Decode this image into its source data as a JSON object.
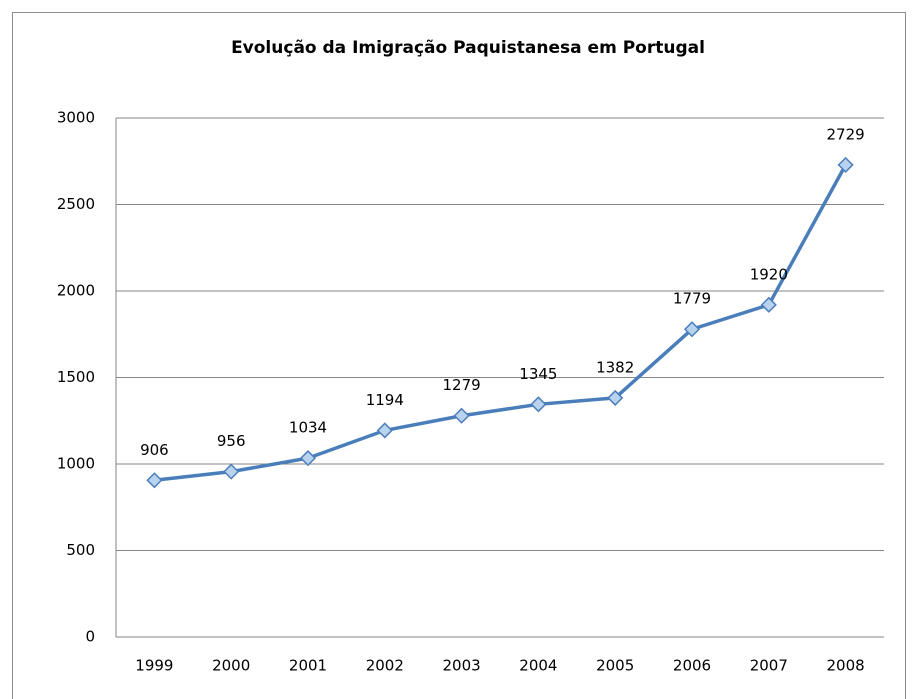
{
  "chart_data": {
    "type": "line",
    "title": "Evolução da Imigração Paquistanesa em Portugal",
    "categories": [
      "1999",
      "2000",
      "2001",
      "2002",
      "2003",
      "2004",
      "2005",
      "2006",
      "2007",
      "2008"
    ],
    "values": [
      906,
      956,
      1034,
      1194,
      1279,
      1345,
      1382,
      1779,
      1920,
      2729
    ],
    "color": "#4a7ebb",
    "marker_color": "#b9d3ee",
    "ylim": [
      0,
      3000
    ],
    "yticks": [
      0,
      500,
      1000,
      1500,
      2000,
      2500,
      3000
    ],
    "grid": true
  }
}
